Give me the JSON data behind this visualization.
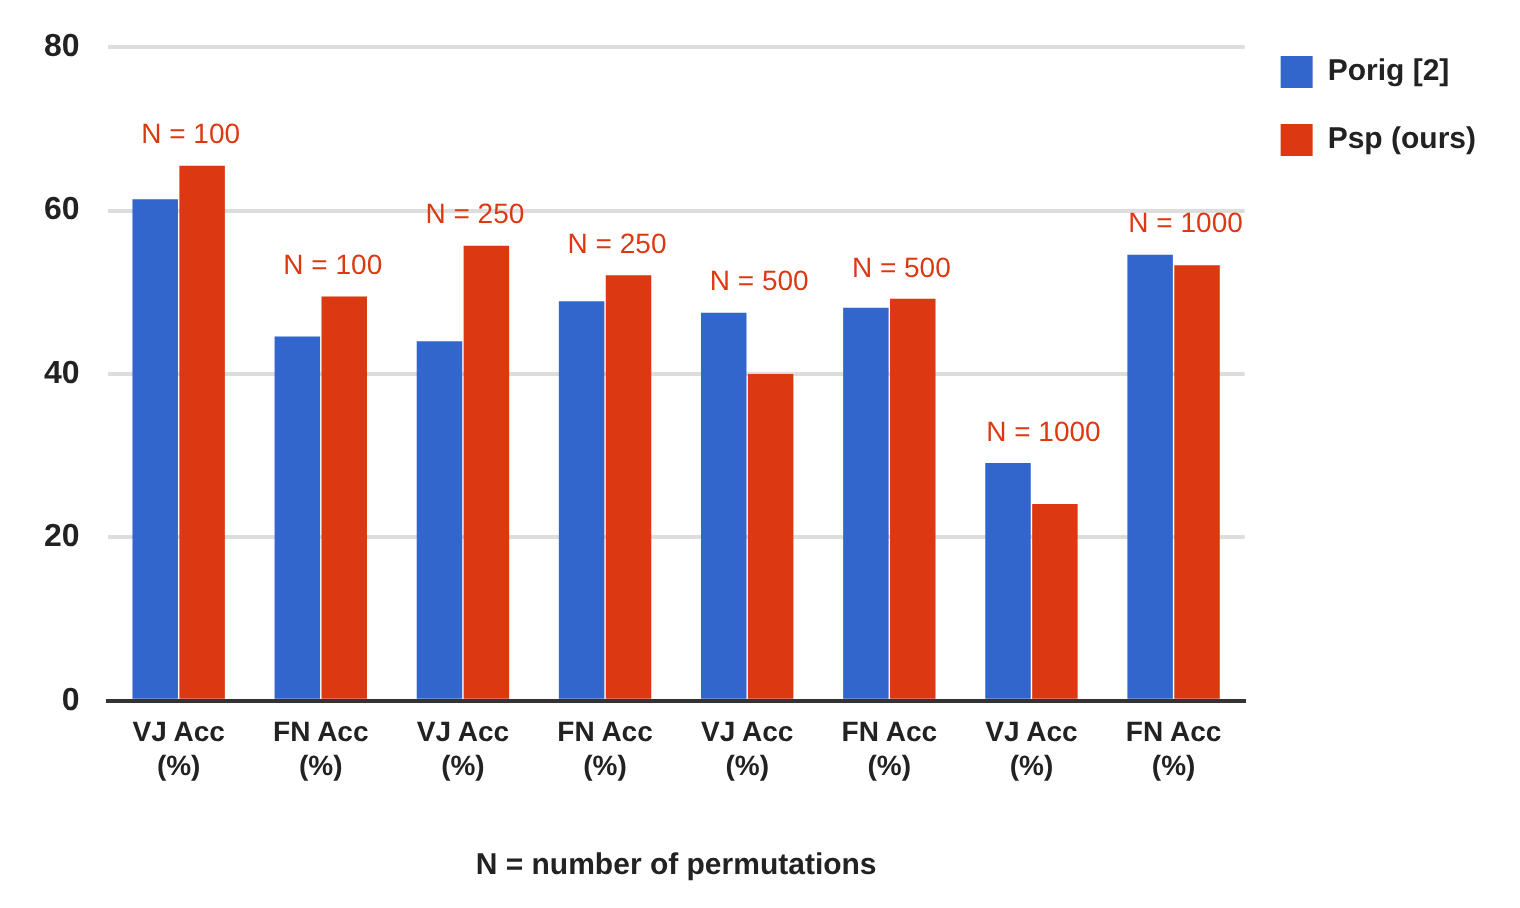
{
  "chart_data": {
    "type": "bar",
    "xlabel": "N = number of permutations",
    "categories": [
      "VJ Acc\n(%)",
      "FN Acc\n(%)",
      "VJ Acc\n(%)",
      "FN Acc\n(%)",
      "VJ Acc\n(%)",
      "FN Acc\n(%)",
      "VJ Acc\n(%)",
      "FN Acc\n(%)"
    ],
    "series": [
      {
        "name": "Porig [2]",
        "color": "#3366cc",
        "values": [
          61.4,
          44.6,
          44.0,
          48.9,
          47.5,
          48.1,
          29.1,
          54.6
        ]
      },
      {
        "name": "Psp (ours)",
        "color": "#dc3912",
        "values": [
          65.5,
          49.5,
          55.7,
          52.1,
          40.0,
          49.2,
          24.1,
          53.3
        ]
      }
    ],
    "annotations": [
      "N = 100",
      "N = 100",
      "N = 250",
      "N = 250",
      "N = 500",
      "N = 500",
      "N = 1000",
      "N = 1000"
    ],
    "ylim": [
      0,
      80
    ],
    "yticks": [
      0,
      20,
      40,
      60,
      80
    ],
    "grid": "y",
    "legend": "top right"
  }
}
